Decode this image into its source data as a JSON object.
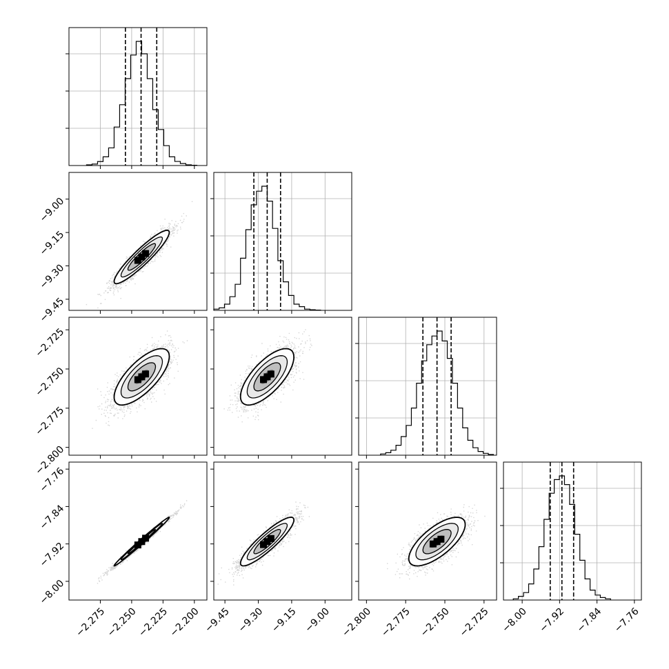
{
  "chart_data": {
    "type": "corner",
    "grid": true,
    "colors": {
      "line": "#000000",
      "grid": "#b0b0b0",
      "scatter": "#888888",
      "fill_dark": "#000000",
      "fill_light": "#bfbfbf"
    },
    "parameters": [
      {
        "index": 0,
        "range": [
          -2.3,
          -2.19
        ],
        "ticks": [
          -2.275,
          -2.25,
          -2.225,
          -2.2
        ],
        "tick_labels": [
          "−2.275",
          "−2.250",
          "−2.225",
          "−2.200"
        ],
        "mean": -2.242,
        "std": 0.011,
        "quantiles": [
          -2.255,
          -2.2425,
          -2.23
        ],
        "hist": [
          0.6,
          1.2,
          3.2,
          7.0,
          14.2,
          31.0,
          49.0,
          70.0,
          89.0,
          100.0,
          90.0,
          70.0,
          45.0,
          29.0,
          16.0,
          7.0,
          3.3,
          1.6,
          0.6,
          0.2
        ]
      },
      {
        "index": 1,
        "range": [
          -9.5,
          -8.88
        ],
        "ticks": [
          -9.45,
          -9.3,
          -9.15,
          -9.0
        ],
        "tick_labels": [
          "−9.45",
          "−9.30",
          "−9.15",
          "−9.00"
        ],
        "mean": -9.26,
        "std": 0.06,
        "quantiles": [
          -9.32,
          -9.26,
          -9.2
        ],
        "hist": [
          1.0,
          2.0,
          5.0,
          11.0,
          21.0,
          42.0,
          65.0,
          85.0,
          96.0,
          100.0,
          88.0,
          66.0,
          40.0,
          23.0,
          12.0,
          5.0,
          3.0,
          1.0,
          0.5,
          0.2
        ]
      },
      {
        "index": 2,
        "range": [
          -2.805,
          -2.717
        ],
        "ticks": [
          -2.8,
          -2.775,
          -2.75,
          -2.725
        ],
        "tick_labels": [
          "−2.800",
          "−2.775",
          "−2.750",
          "−2.725"
        ],
        "mean": -2.755,
        "std": 0.009,
        "quantiles": [
          -2.764,
          -2.755,
          -2.746
        ],
        "hist": [
          1.0,
          2.0,
          4.0,
          8.0,
          15.0,
          24.0,
          38.0,
          58.0,
          76.0,
          89.0,
          96.0,
          100.0,
          92.0,
          78.0,
          58.0,
          38.0,
          22.0,
          12.0,
          6.0,
          3.0,
          1.5,
          0.6
        ]
      },
      {
        "index": 3,
        "range": [
          -8.04,
          -7.745
        ],
        "ticks": [
          -8.0,
          -7.92,
          -7.84,
          -7.76
        ],
        "tick_labels": [
          "−8.00",
          "−7.92",
          "−7.84",
          "−7.76"
        ],
        "mean": -7.915,
        "std": 0.026,
        "quantiles": [
          -7.94,
          -7.915,
          -7.89
        ],
        "hist": [
          1.0,
          3.0,
          6.0,
          13.0,
          25.0,
          43.0,
          65.0,
          86.0,
          97.0,
          100.0,
          93.0,
          77.0,
          53.0,
          32.0,
          17.0,
          8.0,
          4.0,
          2.0,
          1.0
        ]
      }
    ],
    "pairs": [
      {
        "row": 1,
        "col": 0,
        "rho": 0.92
      },
      {
        "row": 2,
        "col": 0,
        "rho": 0.72
      },
      {
        "row": 2,
        "col": 1,
        "rho": 0.7
      },
      {
        "row": 3,
        "col": 0,
        "rho": 0.993
      },
      {
        "row": 3,
        "col": 1,
        "rho": 0.89
      },
      {
        "row": 3,
        "col": 2,
        "rho": 0.7
      }
    ],
    "contour_levels": [
      0.5,
      1.0,
      1.5,
      2.0
    ],
    "scatter_points": 2500
  }
}
